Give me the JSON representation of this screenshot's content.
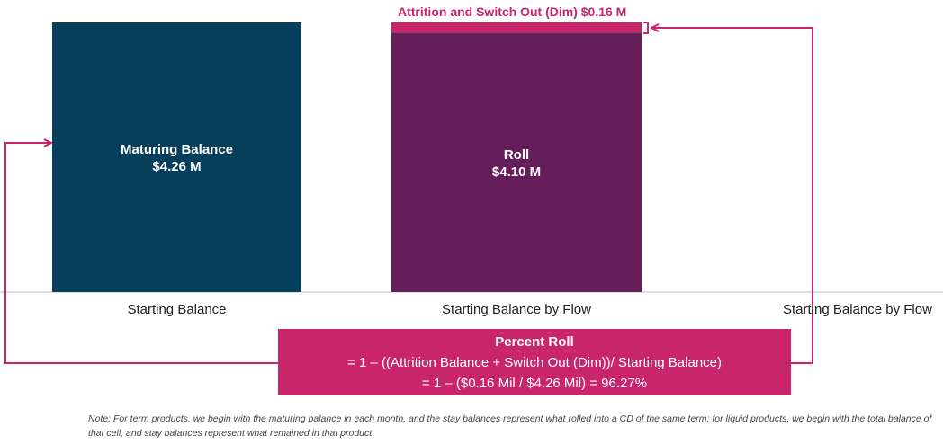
{
  "chart_data": {
    "type": "bar",
    "categories": [
      "Starting Balance",
      "Starting Balance by Flow",
      "Starting Balance by Flow"
    ],
    "bars": [
      {
        "category_index": 0,
        "segments": [
          {
            "name": "Maturing Balance",
            "value": 4.26,
            "value_label": "$4.26 M",
            "color": "#053f5c"
          }
        ]
      },
      {
        "category_index": 1,
        "segments": [
          {
            "name": "Roll",
            "value": 4.1,
            "value_label": "$4.10 M",
            "color": "#661e5a"
          },
          {
            "name": "Attrition and Switch Out (Dim)",
            "value": 0.16,
            "value_label": "$0.16 M",
            "color": "#c8256b"
          }
        ]
      }
    ],
    "ylim": [
      0,
      4.26
    ],
    "grid": false,
    "legend": "none",
    "xlabel": "",
    "ylabel": ""
  },
  "annotation": {
    "top_label": "Attrition and Switch Out (Dim) $0.16 M",
    "color": "#c8256b"
  },
  "formula": {
    "title": "Percent Roll",
    "line1": "= 1 – ((Attrition Balance + Switch Out (Dim))/ Starting Balance)",
    "line2": "= 1 – ($0.16 Mil / $4.26 Mil) = 96.27%",
    "background": "#c8256b"
  },
  "note": "Note: For term products, we begin with the maturing balance in each month, and the stay balances represent what rolled into a CD of the same term; for liquid products, we begin with the total balance of that cell, and stay balances represent what remained in that product"
}
